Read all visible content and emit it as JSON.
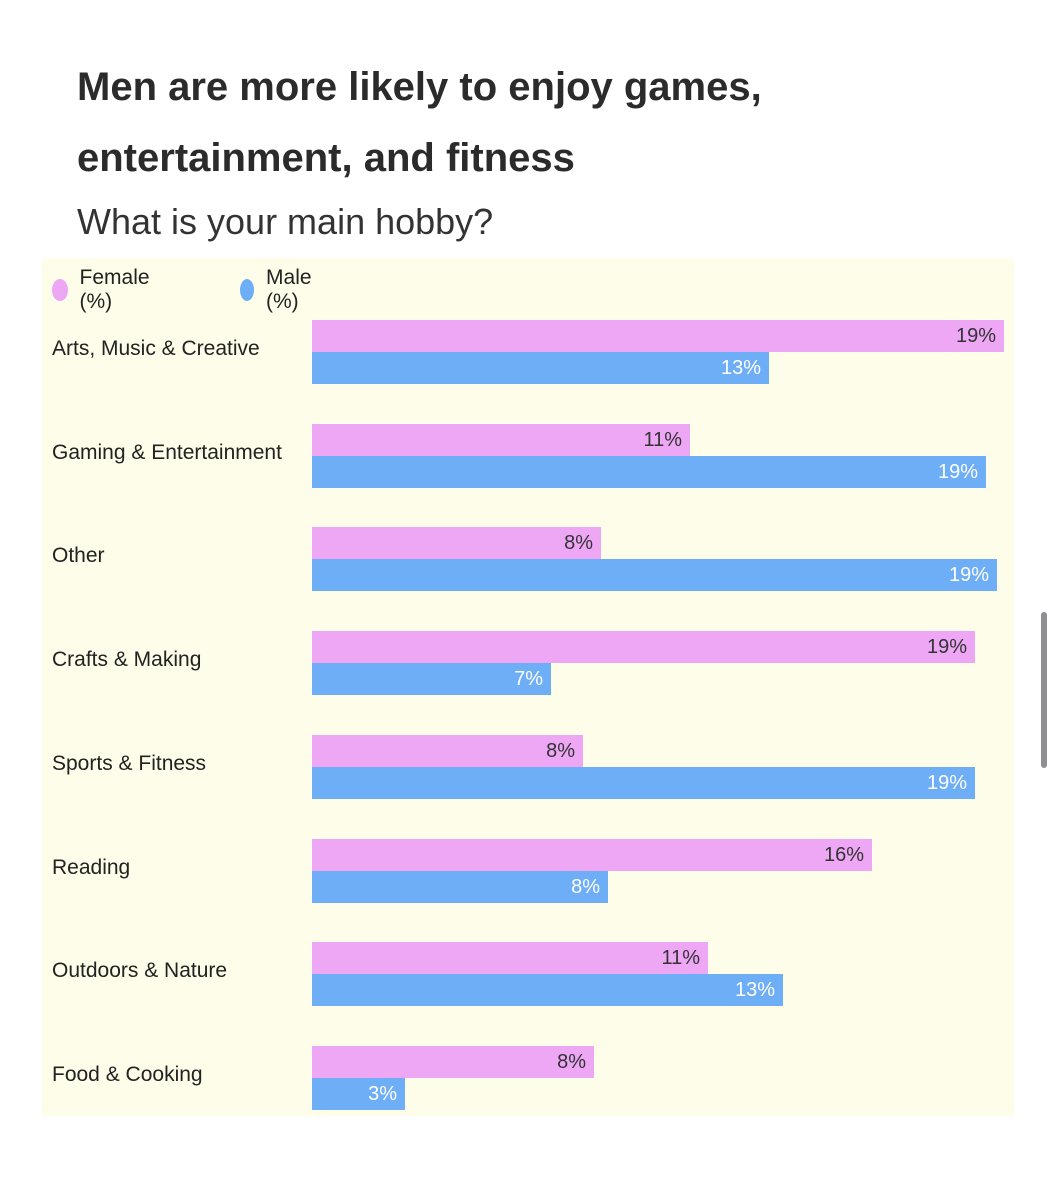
{
  "chart_data": {
    "type": "bar",
    "orientation": "horizontal",
    "title": "Men are more likely to enjoy games, entertainment, and fitness",
    "subtitle": "What is your main hobby?",
    "categories": [
      "Arts, Music & Creative",
      "Gaming & Entertainment",
      "Other",
      "Crafts & Making",
      "Sports & Fitness",
      "Reading",
      "Outdoors & Nature",
      "Food & Cooking"
    ],
    "series": [
      {
        "name": "Female (%)",
        "color": "#eda7f5",
        "values": [
          19.4,
          10.6,
          8.1,
          18.6,
          7.6,
          15.7,
          11.1,
          7.9
        ],
        "labels": [
          "19%",
          "11%",
          "8%",
          "19%",
          "8%",
          "16%",
          "11%",
          "8%"
        ]
      },
      {
        "name": "Male (%)",
        "color": "#6daef7",
        "values": [
          12.8,
          18.9,
          19.2,
          6.7,
          18.6,
          8.3,
          13.2,
          2.6
        ],
        "labels": [
          "13%",
          "19%",
          "19%",
          "7%",
          "19%",
          "8%",
          "13%",
          "3%"
        ]
      }
    ],
    "xlim": [
      0,
      19.4
    ],
    "grid": false,
    "legend": "top-left"
  }
}
